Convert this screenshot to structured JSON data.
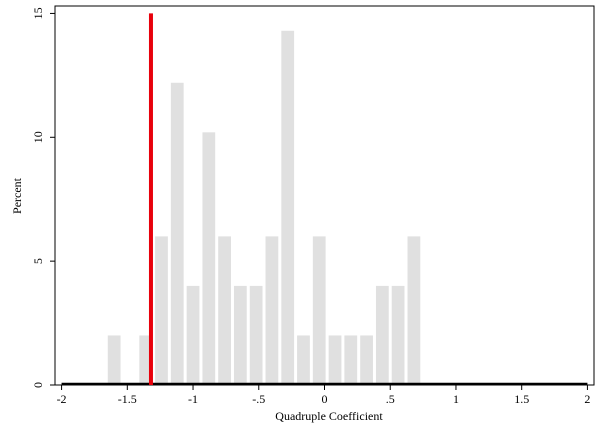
{
  "chart_data": {
    "type": "bar",
    "xlabel": "Quadruple Coefficient",
    "ylabel": "Percent",
    "xlim": [
      -2.05,
      2.05
    ],
    "ylim": [
      0,
      15.3
    ],
    "xticks": [
      {
        "value": -2,
        "label": "-2"
      },
      {
        "value": -1.5,
        "label": "-1.5"
      },
      {
        "value": -1,
        "label": "-1"
      },
      {
        "value": -0.5,
        "label": "-.5"
      },
      {
        "value": 0,
        "label": "0"
      },
      {
        "value": 0.5,
        "label": ".5"
      },
      {
        "value": 1,
        "label": "1"
      },
      {
        "value": 1.5,
        "label": "1.5"
      },
      {
        "value": 2,
        "label": "2"
      }
    ],
    "yticks": [
      {
        "value": 0,
        "label": "0"
      },
      {
        "value": 5,
        "label": "5"
      },
      {
        "value": 10,
        "label": "10"
      },
      {
        "value": 15,
        "label": "15"
      }
    ],
    "bin_width": 0.12,
    "bins": [
      {
        "x": -1.6,
        "value": 2
      },
      {
        "x": -1.48,
        "value": 0
      },
      {
        "x": -1.36,
        "value": 2
      },
      {
        "x": -1.24,
        "value": 6
      },
      {
        "x": -1.12,
        "value": 12.2
      },
      {
        "x": -1.0,
        "value": 4
      },
      {
        "x": -0.88,
        "value": 10.2
      },
      {
        "x": -0.76,
        "value": 6
      },
      {
        "x": -0.64,
        "value": 4
      },
      {
        "x": -0.52,
        "value": 4
      },
      {
        "x": -0.4,
        "value": 6
      },
      {
        "x": -0.28,
        "value": 14.3
      },
      {
        "x": -0.16,
        "value": 2
      },
      {
        "x": -0.04,
        "value": 6
      },
      {
        "x": 0.08,
        "value": 2
      },
      {
        "x": 0.2,
        "value": 2
      },
      {
        "x": 0.32,
        "value": 2
      },
      {
        "x": 0.44,
        "value": 4
      },
      {
        "x": 0.56,
        "value": 4
      },
      {
        "x": 0.68,
        "value": 6
      }
    ],
    "reference_line": {
      "x": -1.32,
      "color": "#e8000b"
    },
    "bar_color": "#e0e0e0",
    "baseline_color": "#000000",
    "grid": false,
    "legend": false
  }
}
